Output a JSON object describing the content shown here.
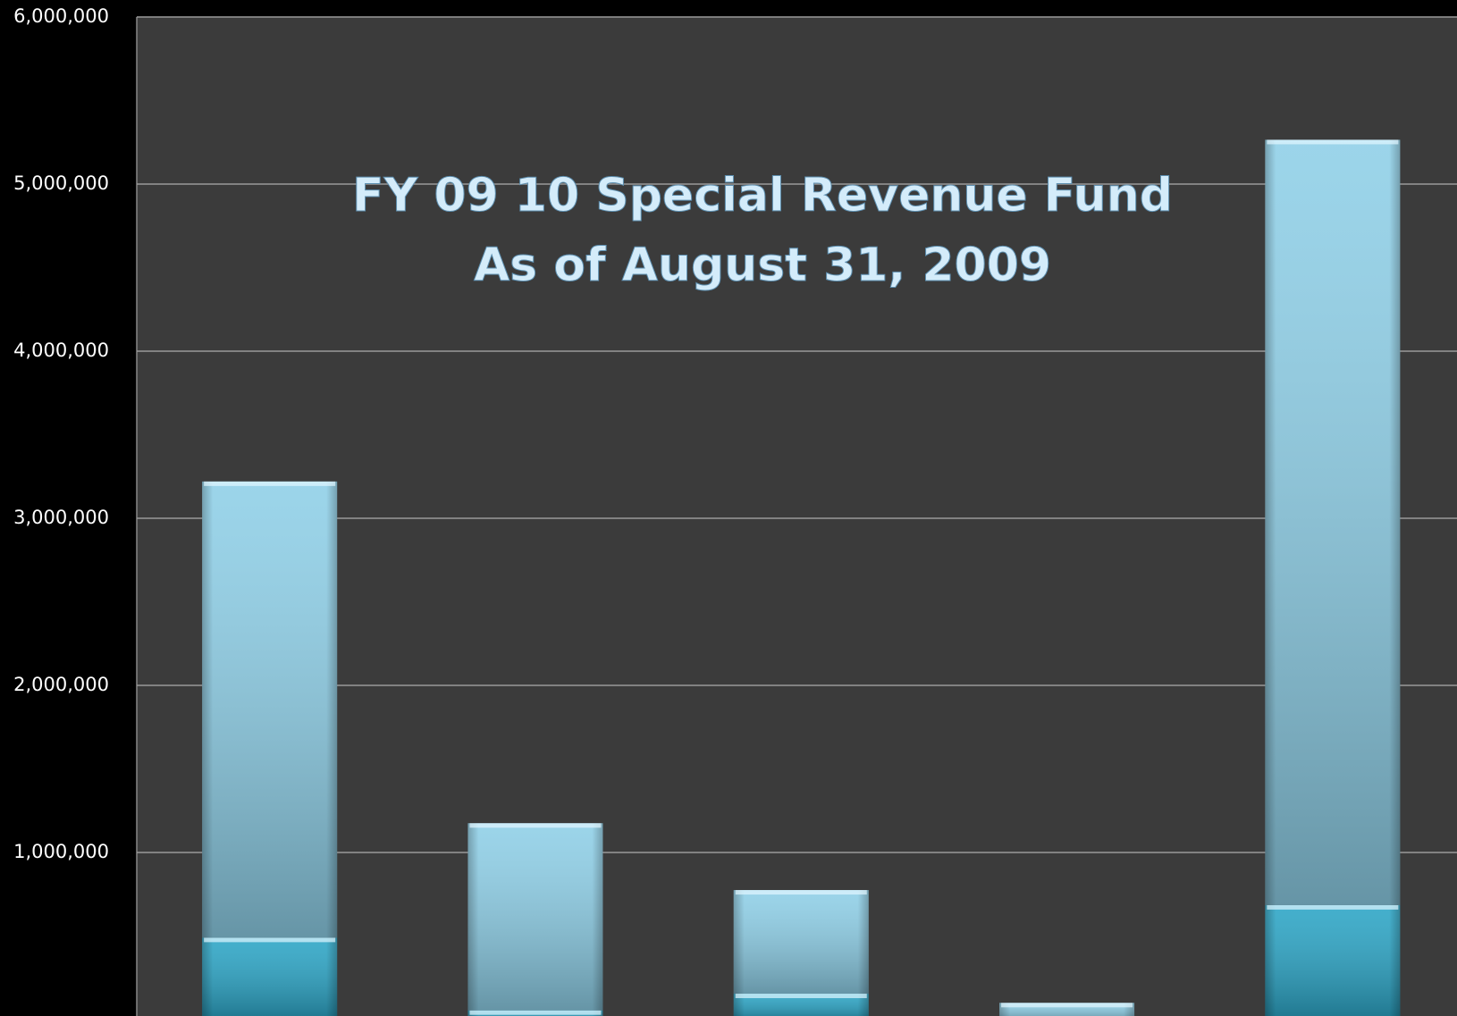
{
  "chart_data": {
    "type": "stacked_bar",
    "title": "FY 09 10 Special Revenue Fund",
    "subtitle": "As of August 31, 2009",
    "categories": [
      null,
      null,
      null,
      null,
      null
    ],
    "series": [
      {
        "color": "#2ba5c6",
        "values": [
          490000,
          55000,
          155000,
          0,
          685000
        ]
      },
      {
        "color": "#8ecfe7",
        "values": [
          2730000,
          1120000,
          620000,
          100000,
          4580000
        ]
      }
    ],
    "ylim": [
      0,
      6000000
    ],
    "yticks": [
      {
        "value": 1000000,
        "label": "1,000,000"
      },
      {
        "value": 2000000,
        "label": "2,000,000"
      },
      {
        "value": 3000000,
        "label": "3,000,000"
      },
      {
        "value": 4000000,
        "label": "4,000,000"
      },
      {
        "value": 5000000,
        "label": "5,000,000"
      },
      {
        "value": 6000000,
        "label": "6,000,000"
      }
    ],
    "grid": true
  }
}
